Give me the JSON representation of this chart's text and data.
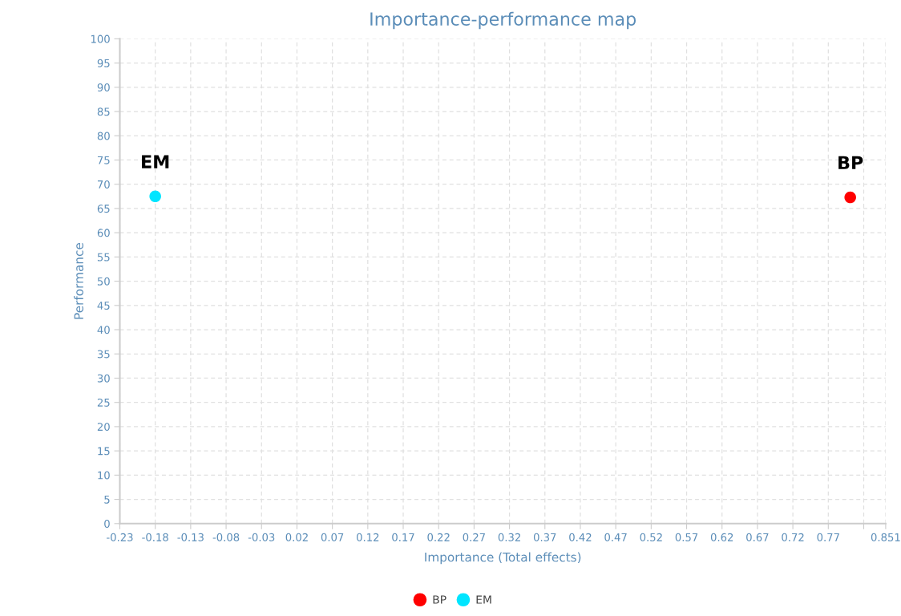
{
  "chart_data": {
    "type": "scatter",
    "title": "Importance-performance map",
    "xlabel": "Importance (Total effects)",
    "ylabel": "Performance",
    "series": [
      {
        "name": "BP",
        "color": "#ff0000",
        "x": [
          0.801
        ],
        "values": [
          67.3
        ]
      },
      {
        "name": "EM",
        "color": "#00e5ff",
        "x": [
          -0.18
        ],
        "values": [
          67.5
        ]
      }
    ],
    "xlim": [
      -0.23,
      0.851
    ],
    "xticks": [
      -0.23,
      -0.18,
      -0.13,
      -0.08,
      -0.03,
      0.02,
      0.07,
      0.12,
      0.17,
      0.22,
      0.27,
      0.32,
      0.37,
      0.42,
      0.47,
      0.52,
      0.57,
      0.62,
      0.67,
      0.72,
      0.77,
      {
        "value": 0.82,
        "label": null
      },
      0.851
    ],
    "ylim": [
      0,
      100
    ],
    "yticks": [
      0,
      5,
      10,
      15,
      20,
      25,
      30,
      35,
      40,
      45,
      50,
      55,
      60,
      65,
      70,
      75,
      80,
      85,
      90,
      95,
      100
    ],
    "grid": true,
    "legend": "bottom",
    "marker": "circle"
  }
}
